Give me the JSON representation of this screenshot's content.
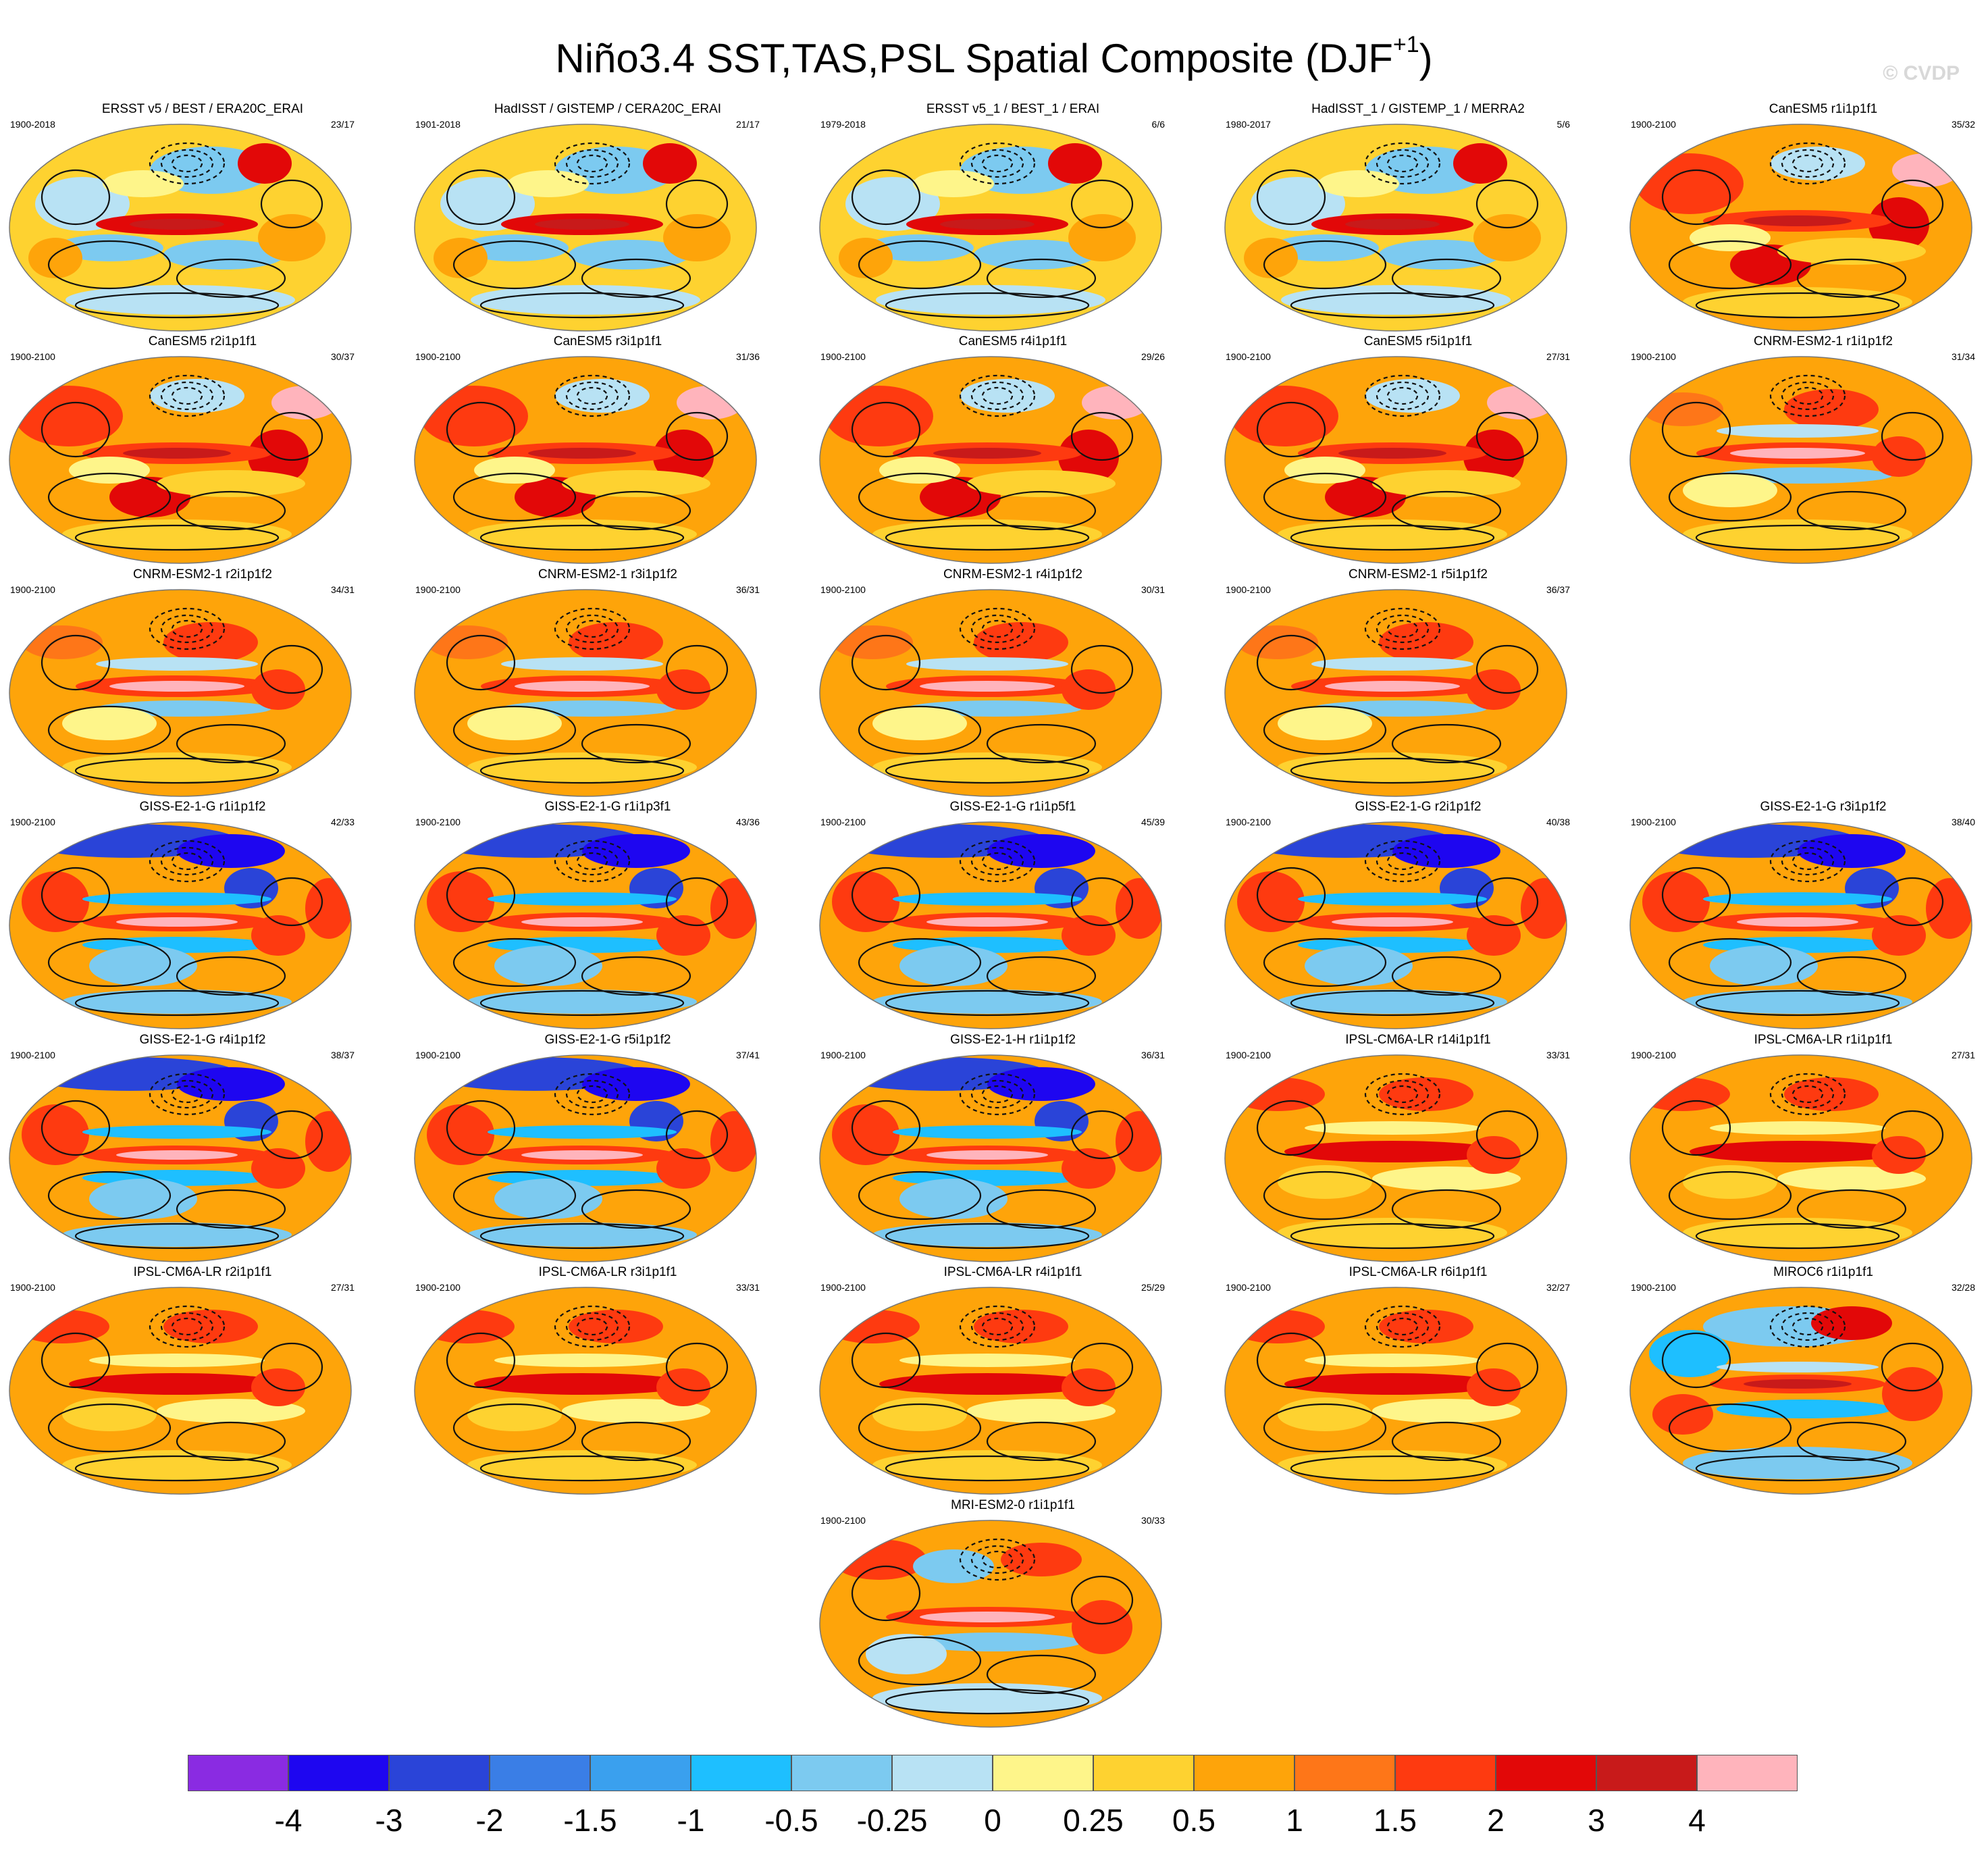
{
  "title": "Niño3.4 SST,TAS,PSL Spatial Composite (DJF",
  "title_superscript": "+1",
  "title_suffix": ")",
  "watermark": "© CVDP",
  "panels": [
    {
      "title": "ERSST v5 / BEST / ERA20C_ERAI",
      "years": "1900-2018",
      "count": "23/17",
      "pattern": "obs"
    },
    {
      "title": "HadISST / GISTEMP / CERA20C_ERAI",
      "years": "1901-2018",
      "count": "21/17",
      "pattern": "obs"
    },
    {
      "title": "ERSST v5_1 / BEST_1 / ERAI",
      "years": "1979-2018",
      "count": "6/6",
      "pattern": "obs"
    },
    {
      "title": "HadISST_1 / GISTEMP_1 / MERRA2",
      "years": "1980-2017",
      "count": "5/6",
      "pattern": "obs"
    },
    {
      "title": "CanESM5 r1i1p1f1",
      "years": "1900-2100",
      "count": "35/32",
      "pattern": "canesm"
    },
    {
      "title": "CanESM5 r2i1p1f1",
      "years": "1900-2100",
      "count": "30/37",
      "pattern": "canesm"
    },
    {
      "title": "CanESM5 r3i1p1f1",
      "years": "1900-2100",
      "count": "31/36",
      "pattern": "canesm"
    },
    {
      "title": "CanESM5 r4i1p1f1",
      "years": "1900-2100",
      "count": "29/26",
      "pattern": "canesm"
    },
    {
      "title": "CanESM5 r5i1p1f1",
      "years": "1900-2100",
      "count": "27/31",
      "pattern": "canesm"
    },
    {
      "title": "CNRM-ESM2-1 r1i1p1f2",
      "years": "1900-2100",
      "count": "31/34",
      "pattern": "cnrm"
    },
    {
      "title": "CNRM-ESM2-1 r2i1p1f2",
      "years": "1900-2100",
      "count": "34/31",
      "pattern": "cnrm"
    },
    {
      "title": "CNRM-ESM2-1 r3i1p1f2",
      "years": "1900-2100",
      "count": "36/31",
      "pattern": "cnrm"
    },
    {
      "title": "CNRM-ESM2-1 r4i1p1f2",
      "years": "1900-2100",
      "count": "30/31",
      "pattern": "cnrm"
    },
    {
      "title": "CNRM-ESM2-1 r5i1p1f2",
      "years": "1900-2100",
      "count": "36/37",
      "pattern": "cnrm"
    },
    {
      "title": "GISS-E2-1-G r1i1p1f2",
      "years": "1900-2100",
      "count": "42/33",
      "pattern": "giss"
    },
    {
      "title": "GISS-E2-1-G r1i1p3f1",
      "years": "1900-2100",
      "count": "43/36",
      "pattern": "giss"
    },
    {
      "title": "GISS-E2-1-G r1i1p5f1",
      "years": "1900-2100",
      "count": "45/39",
      "pattern": "giss"
    },
    {
      "title": "GISS-E2-1-G r2i1p1f2",
      "years": "1900-2100",
      "count": "40/38",
      "pattern": "giss"
    },
    {
      "title": "GISS-E2-1-G r3i1p1f2",
      "years": "1900-2100",
      "count": "38/40",
      "pattern": "giss"
    },
    {
      "title": "GISS-E2-1-G r4i1p1f2",
      "years": "1900-2100",
      "count": "38/37",
      "pattern": "giss"
    },
    {
      "title": "GISS-E2-1-G r5i1p1f2",
      "years": "1900-2100",
      "count": "37/41",
      "pattern": "giss"
    },
    {
      "title": "GISS-E2-1-H r1i1p1f2",
      "years": "1900-2100",
      "count": "36/31",
      "pattern": "giss"
    },
    {
      "title": "IPSL-CM6A-LR r14i1p1f1",
      "years": "1900-2100",
      "count": "33/31",
      "pattern": "ipsl"
    },
    {
      "title": "IPSL-CM6A-LR r1i1p1f1",
      "years": "1900-2100",
      "count": "27/31",
      "pattern": "ipsl"
    },
    {
      "title": "IPSL-CM6A-LR r2i1p1f1",
      "years": "1900-2100",
      "count": "27/31",
      "pattern": "ipsl"
    },
    {
      "title": "IPSL-CM6A-LR r3i1p1f1",
      "years": "1900-2100",
      "count": "33/31",
      "pattern": "ipsl"
    },
    {
      "title": "IPSL-CM6A-LR r4i1p1f1",
      "years": "1900-2100",
      "count": "25/29",
      "pattern": "ipsl"
    },
    {
      "title": "IPSL-CM6A-LR r6i1p1f1",
      "years": "1900-2100",
      "count": "32/27",
      "pattern": "ipsl"
    },
    {
      "title": "MIROC6 r1i1p1f1",
      "years": "1900-2100",
      "count": "32/28",
      "pattern": "miroc"
    },
    {
      "title": "MRI-ESM2-0 r1i1p1f1",
      "years": "1900-2100",
      "count": "30/33",
      "pattern": "mri"
    }
  ],
  "colorbar": {
    "colors": [
      "#8a2be2",
      "#1e06f0",
      "#2a44d8",
      "#3a7ee6",
      "#3aa0ee",
      "#1ebfff",
      "#7ccaf0",
      "#b8e2f4",
      "#fef58a",
      "#fed230",
      "#fea40a",
      "#fe7618",
      "#fe3a10",
      "#e20808",
      "#c81a1a",
      "#ffb4bc"
    ],
    "labels": [
      "-4",
      "-3",
      "-2",
      "-1.5",
      "-1",
      "-0.5",
      "-0.25",
      "0",
      "0.25",
      "0.5",
      "1",
      "1.5",
      "2",
      "3",
      "4"
    ]
  }
}
